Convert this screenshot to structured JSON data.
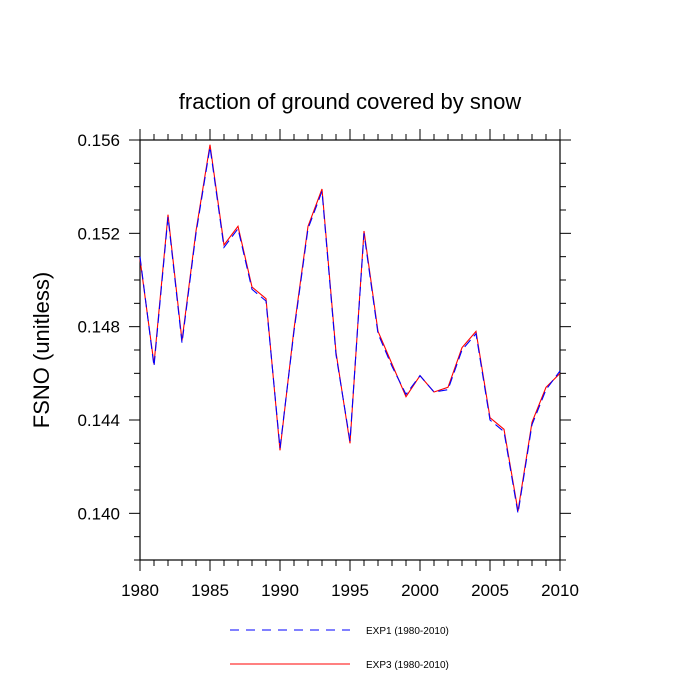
{
  "chart_data": {
    "type": "line",
    "title": "fraction of ground covered by snow",
    "ylabel": "FSNO  (unitless)",
    "xlabel": "",
    "xlim": [
      1980,
      2010
    ],
    "ylim": [
      0.138,
      0.156
    ],
    "x_ticks": [
      1980,
      1985,
      1990,
      1995,
      2000,
      2005,
      2010
    ],
    "x_tick_labels": [
      "1980",
      "1985",
      "1990",
      "1995",
      "2000",
      "2005",
      "2010"
    ],
    "y_ticks": [
      0.14,
      0.144,
      0.148,
      0.152,
      0.156
    ],
    "y_tick_labels": [
      "0.140",
      "0.144",
      "0.148",
      "0.152",
      "0.156"
    ],
    "grid": false,
    "legend_placement": "bottom",
    "x": [
      1980,
      1981,
      1982,
      1983,
      1984,
      1985,
      1986,
      1987,
      1988,
      1989,
      1990,
      1991,
      1992,
      1993,
      1994,
      1995,
      1996,
      1997,
      1998,
      1999,
      2000,
      2001,
      2002,
      2003,
      2004,
      2005,
      2006,
      2007,
      2008,
      2009,
      2010
    ],
    "series": [
      {
        "name": "EXP1 (1980-2010)",
        "color": "#0000ff",
        "style": "dashed",
        "values": [
          0.151,
          0.1463,
          0.1527,
          0.1473,
          0.152,
          0.1557,
          0.1514,
          0.1522,
          0.1496,
          0.1491,
          0.1428,
          0.1478,
          0.1522,
          0.1538,
          0.1468,
          0.1431,
          0.152,
          0.1477,
          0.1463,
          0.1451,
          0.1459,
          0.1452,
          0.1453,
          0.147,
          0.1477,
          0.144,
          0.1435,
          0.14,
          0.1438,
          0.1453,
          0.1461
        ]
      },
      {
        "name": "EXP3 (1980-2010)",
        "color": "#ff0000",
        "style": "solid",
        "values": [
          0.1509,
          0.1464,
          0.1528,
          0.1474,
          0.1521,
          0.1558,
          0.1515,
          0.1523,
          0.1497,
          0.1492,
          0.1427,
          0.1479,
          0.1523,
          0.1539,
          0.1469,
          0.143,
          0.1521,
          0.1478,
          0.1464,
          0.145,
          0.1459,
          0.1452,
          0.1454,
          0.1471,
          0.1478,
          0.1441,
          0.1436,
          0.1401,
          0.1439,
          0.1454,
          0.146
        ]
      }
    ]
  }
}
